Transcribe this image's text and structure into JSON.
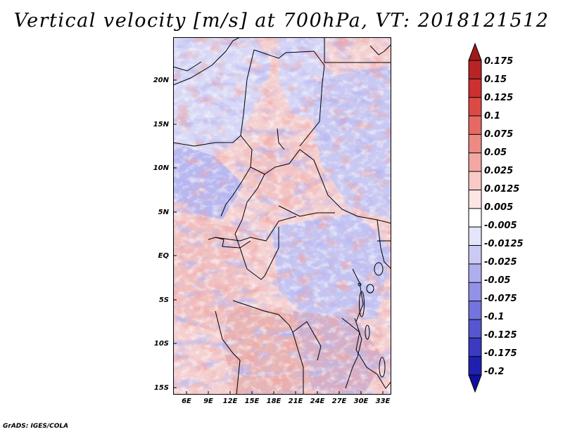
{
  "title": "Vertical velocity [m/s] at 700hPa, VT: 2018121512",
  "credit": "GrADS: IGES/COLA",
  "lat_labels": [
    "20N",
    "15N",
    "10N",
    "5N",
    "EQ",
    "5S",
    "10S",
    "15S"
  ],
  "lon_labels": [
    "6E",
    "9E",
    "12E",
    "15E",
    "18E",
    "21E",
    "24E",
    "27E",
    "30E",
    "33E"
  ],
  "colorbar": {
    "labels": [
      "0.175",
      "0.15",
      "0.125",
      "0.1",
      "0.075",
      "0.05",
      "0.025",
      "0.0125",
      "0.005",
      "-0.005",
      "-0.0125",
      "-0.025",
      "-0.05",
      "-0.075",
      "-0.1",
      "-0.125",
      "-0.175",
      "-0.2"
    ],
    "colors": [
      "#a01a1a",
      "#b82424",
      "#cc3030",
      "#dc4a46",
      "#e56a64",
      "#ec8a84",
      "#f2a8a2",
      "#f8cac6",
      "#fce6e4",
      "#ffffff",
      "#e4e4fa",
      "#cacaf4",
      "#aeaeee",
      "#9292e6",
      "#7474dc",
      "#5656d0",
      "#3a3ac2",
      "#2020b0",
      "#1010a0"
    ]
  },
  "chart_data": {
    "type": "heatmap",
    "title": "Vertical velocity [m/s] at 700hPa, VT: 2018121512",
    "variable": "vertical velocity",
    "units": "m/s",
    "level": "700hPa",
    "valid_time": "2018121512",
    "lon_range": [
      4,
      34
    ],
    "lat_range": [
      -16,
      25
    ],
    "levels": [
      -0.2,
      -0.175,
      -0.125,
      -0.1,
      -0.075,
      -0.05,
      -0.025,
      -0.0125,
      -0.005,
      0.005,
      0.0125,
      0.025,
      0.05,
      0.075,
      0.1,
      0.125,
      0.15,
      0.175
    ]
  }
}
